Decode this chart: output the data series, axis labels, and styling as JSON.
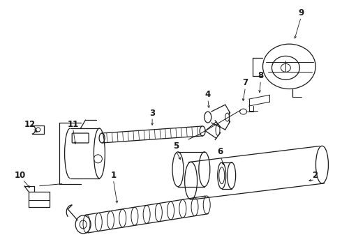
{
  "background_color": "#ffffff",
  "line_color": "#1a1a1a",
  "figure_width": 4.9,
  "figure_height": 3.6,
  "dpi": 100
}
